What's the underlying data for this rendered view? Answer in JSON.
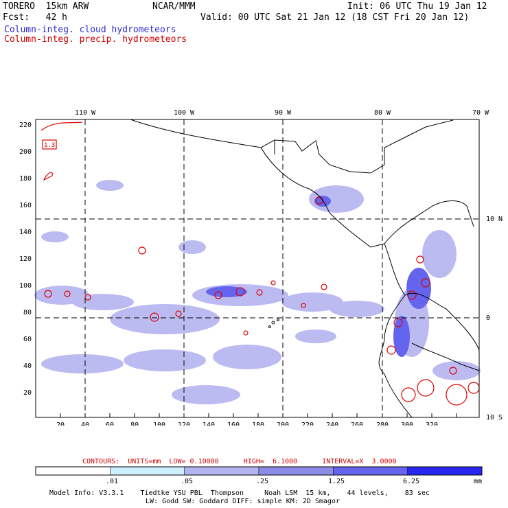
{
  "header": {
    "model": "TORERO  15km ARW",
    "org": "NCAR/MMM",
    "init": "Init: 06 UTC Thu 19 Jan 12",
    "fcst": "Fcst:   42 h",
    "valid": "Valid: 00 UTC Sat 21 Jan 12 (18 CST Fri 20 Jan 12)",
    "field1": "Column-integ. cloud hydrometeors",
    "field2": "Column-integ. precip. hydrometeors"
  },
  "map": {
    "lon_labels": [
      "110 W",
      "100 W",
      "90 W",
      "80 W",
      "70 W"
    ],
    "lat_labels": [
      "10 N",
      "0",
      "10 S"
    ],
    "x_ticks": [
      "20",
      "40",
      "60",
      "80",
      "100",
      "120",
      "140",
      "160",
      "180",
      "200",
      "220",
      "240",
      "260",
      "280",
      "300",
      "320"
    ],
    "y_ticks": [
      "220",
      "200",
      "180",
      "160",
      "140",
      "120",
      "100",
      "80",
      "60",
      "40",
      "20"
    ],
    "box_label": "1.3"
  },
  "contours": "CONTOURS:  UNITS=mm  LOW= 0.10000      HIGH=  6.1000      INTERVAL=X  3.0000",
  "colorbar": {
    "labels": [
      ".01",
      ".05",
      ".25",
      "1.25",
      "6.25"
    ],
    "unit": "mm",
    "colors": [
      "#ffffff",
      "#ccf0ff",
      "#b4b4f0",
      "#8c8ce6",
      "#6464ee",
      "#2828f0"
    ]
  },
  "model_info": {
    "line1": "Model Info: V3.3.1    Tiedtke YSU PBL  Thompson     Noah LSM  15 km,    44 levels,    83 sec",
    "line2": "LW: Godd SW: Goddard DIFF: simple KM: 2D Smagor"
  }
}
